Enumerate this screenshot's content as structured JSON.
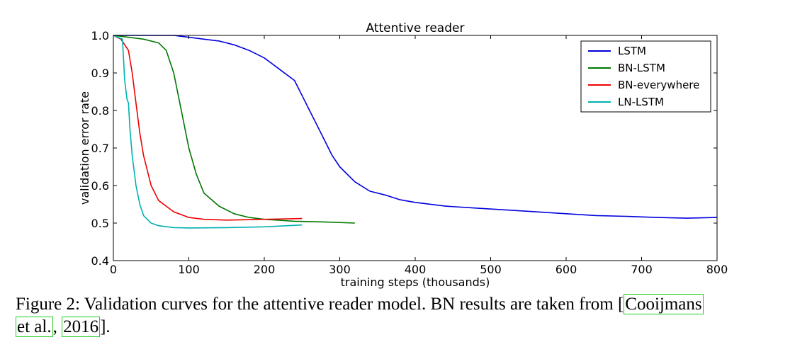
{
  "chart_data": {
    "type": "line",
    "title": "Attentive reader",
    "xlabel": "training steps (thousands)",
    "ylabel": "validation error rate",
    "xlim": [
      0,
      800
    ],
    "ylim": [
      0.4,
      1.0
    ],
    "xticks": [
      "0",
      "100",
      "200",
      "300",
      "400",
      "500",
      "600",
      "700",
      "800"
    ],
    "yticks": [
      "0.4",
      "0.5",
      "0.6",
      "0.7",
      "0.8",
      "0.9",
      "1.0"
    ],
    "legend_position": "top-right",
    "series": [
      {
        "name": "LSTM",
        "color": "#0000dd",
        "x": [
          0,
          20,
          50,
          80,
          100,
          120,
          140,
          160,
          180,
          200,
          220,
          240,
          250,
          260,
          270,
          280,
          290,
          300,
          320,
          340,
          360,
          380,
          400,
          440,
          480,
          520,
          560,
          600,
          640,
          680,
          720,
          760,
          800
        ],
        "y": [
          1.0,
          1.0,
          1.0,
          1.0,
          0.995,
          0.99,
          0.985,
          0.975,
          0.96,
          0.94,
          0.91,
          0.88,
          0.84,
          0.8,
          0.76,
          0.72,
          0.68,
          0.65,
          0.61,
          0.585,
          0.575,
          0.562,
          0.555,
          0.545,
          0.54,
          0.535,
          0.53,
          0.525,
          0.52,
          0.518,
          0.515,
          0.513,
          0.515
        ]
      },
      {
        "name": "BN-LSTM",
        "color": "#007700",
        "x": [
          0,
          20,
          40,
          60,
          70,
          80,
          90,
          100,
          110,
          120,
          140,
          160,
          180,
          200,
          240,
          280,
          320
        ],
        "y": [
          1.0,
          0.995,
          0.99,
          0.98,
          0.96,
          0.9,
          0.8,
          0.7,
          0.63,
          0.58,
          0.545,
          0.525,
          0.515,
          0.51,
          0.505,
          0.503,
          0.5
        ]
      },
      {
        "name": "BN-everywhere",
        "color": "#ee0000",
        "x": [
          0,
          10,
          20,
          25,
          30,
          35,
          40,
          50,
          60,
          80,
          100,
          120,
          150,
          200,
          250
        ],
        "y": [
          1.0,
          0.99,
          0.96,
          0.9,
          0.82,
          0.74,
          0.68,
          0.6,
          0.56,
          0.53,
          0.515,
          0.51,
          0.508,
          0.51,
          0.512
        ]
      },
      {
        "name": "LN-LSTM",
        "color": "#00b0b0",
        "x": [
          0,
          12,
          15,
          18,
          20,
          22,
          25,
          30,
          35,
          40,
          50,
          60,
          80,
          100,
          150,
          200,
          250
        ],
        "y": [
          1.0,
          0.99,
          0.88,
          0.83,
          0.82,
          0.75,
          0.68,
          0.6,
          0.55,
          0.52,
          0.5,
          0.493,
          0.488,
          0.487,
          0.488,
          0.49,
          0.495
        ]
      }
    ]
  },
  "caption": {
    "text_before": "Figure 2: Validation curves for the attentive reader model. BN results are taken from [",
    "cite_line1": "Cooijmans",
    "cite_line2": "et al.",
    "separator": ", ",
    "cite_year": "2016",
    "text_after": "]."
  }
}
